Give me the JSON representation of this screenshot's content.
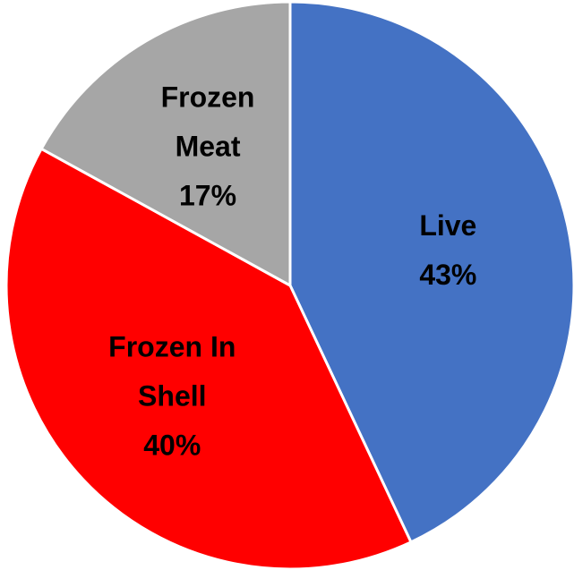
{
  "chart_data": {
    "type": "pie",
    "title": "",
    "slices": [
      {
        "label_lines": [
          "Live"
        ],
        "percent_label": "43%",
        "value": 43,
        "color": "#4472C4"
      },
      {
        "label_lines": [
          "Frozen In",
          "Shell"
        ],
        "percent_label": "40%",
        "value": 40,
        "color": "#FF0000"
      },
      {
        "label_lines": [
          "Frozen",
          "Meat"
        ],
        "percent_label": "17%",
        "value": 17,
        "color": "#A6A6A6"
      }
    ],
    "start_angle_deg": 0,
    "direction": "clockwise",
    "legend": "none",
    "slice_border_color": "#FFFFFF"
  }
}
